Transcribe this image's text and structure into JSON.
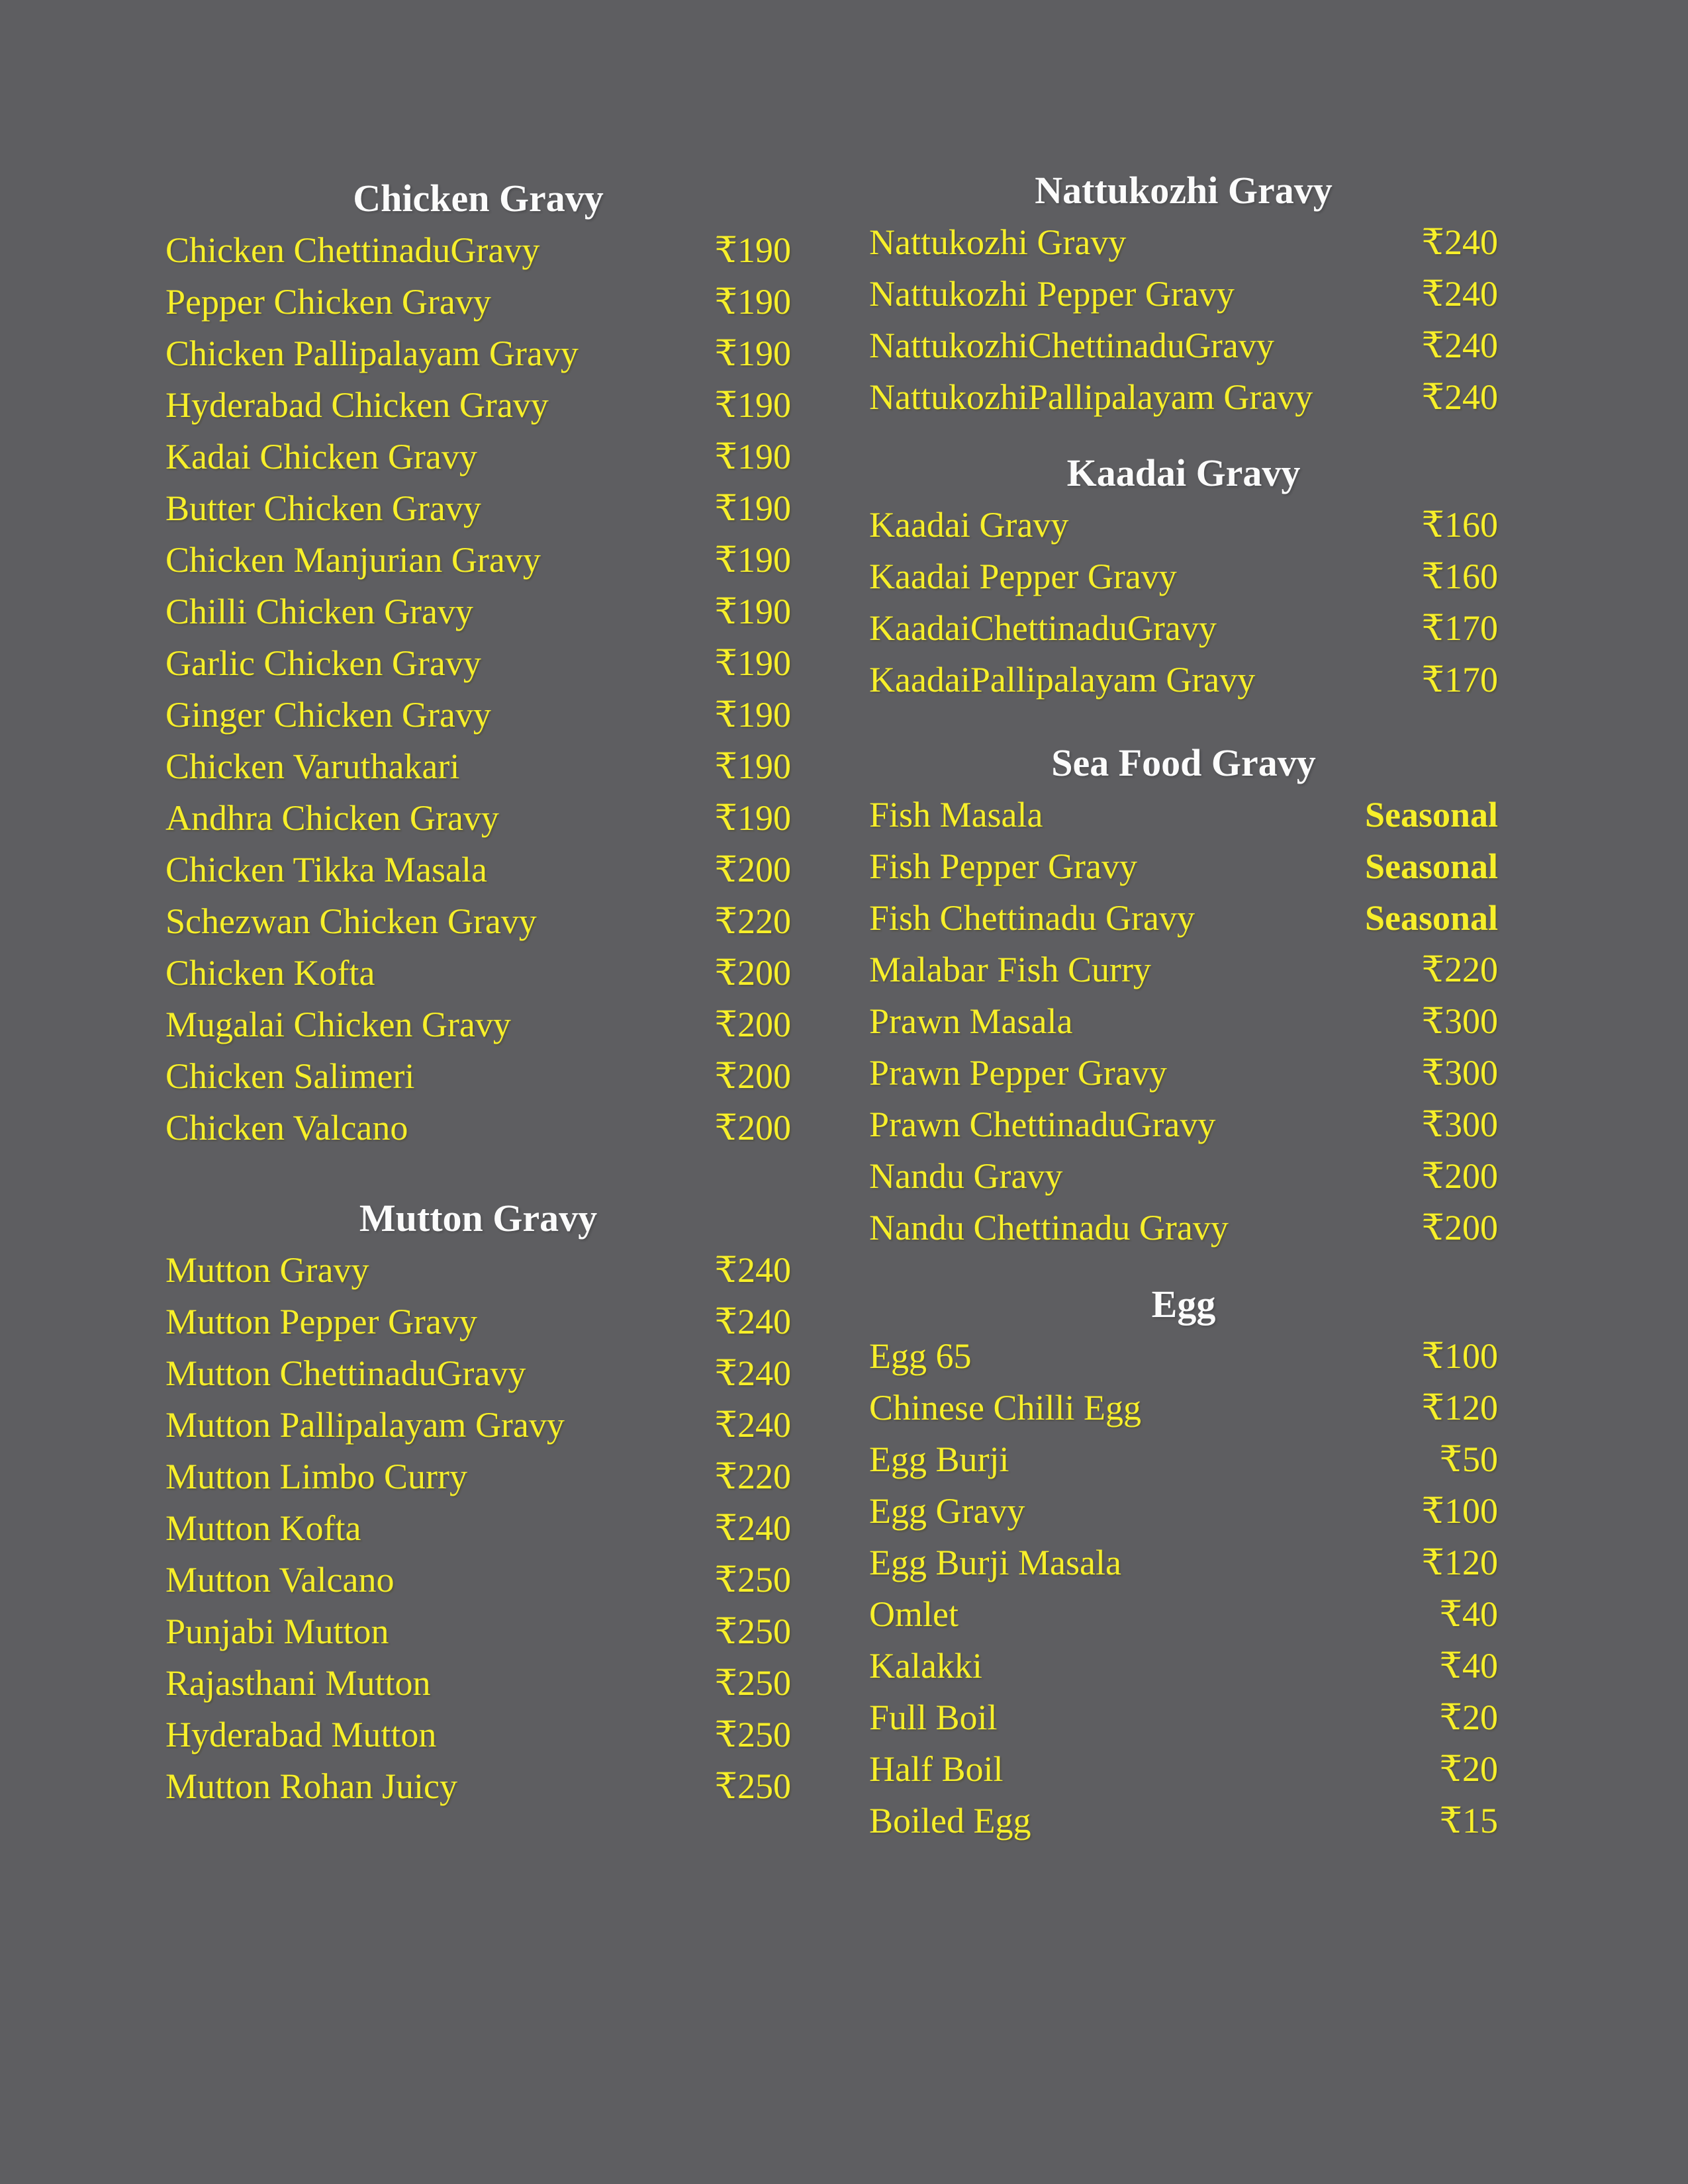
{
  "page": {
    "background_color": "#5e5e61",
    "item_text_color": "#f7ef2a",
    "header_text_color": "#fbfbfb",
    "currency_symbol": "₹"
  },
  "columns": [
    {
      "sections": [
        {
          "title": "Chicken Gravy",
          "items": [
            {
              "name": "Chicken ChettinaduGravy",
              "price": "₹190"
            },
            {
              "name": "Pepper Chicken Gravy",
              "price": "₹190"
            },
            {
              "name": "Chicken Pallipalayam Gravy",
              "price": "₹190"
            },
            {
              "name": "Hyderabad Chicken Gravy",
              "price": "₹190"
            },
            {
              "name": "Kadai Chicken Gravy",
              "price": "₹190"
            },
            {
              "name": "Butter Chicken Gravy",
              "price": "₹190"
            },
            {
              "name": "Chicken Manjurian Gravy",
              "price": "₹190"
            },
            {
              "name": "Chilli Chicken Gravy",
              "price": "₹190"
            },
            {
              "name": "Garlic Chicken Gravy",
              "price": "₹190"
            },
            {
              "name": "Ginger Chicken Gravy",
              "price": "₹190"
            },
            {
              "name": "Chicken Varuthakari",
              "price": "₹190"
            },
            {
              "name": "Andhra Chicken Gravy",
              "price": "₹190"
            },
            {
              "name": "Chicken Tikka Masala",
              "price": "₹200"
            },
            {
              "name": "Schezwan Chicken Gravy",
              "price": "₹220"
            },
            {
              "name": "Chicken Kofta",
              "price": "₹200"
            },
            {
              "name": "Mugalai Chicken Gravy",
              "price": "₹200"
            },
            {
              "name": "Chicken Salimeri",
              "price": "₹200"
            },
            {
              "name": "Chicken Valcano",
              "price": "₹200"
            }
          ]
        },
        {
          "title": "Mutton Gravy",
          "items": [
            {
              "name": "Mutton Gravy",
              "price": "₹240"
            },
            {
              "name": "Mutton Pepper Gravy",
              "price": "₹240"
            },
            {
              "name": "Mutton ChettinaduGravy",
              "price": "₹240"
            },
            {
              "name": "Mutton Pallipalayam Gravy",
              "price": "₹240"
            },
            {
              "name": "Mutton Limbo Curry",
              "price": "₹220"
            },
            {
              "name": "Mutton Kofta",
              "price": "₹240"
            },
            {
              "name": "Mutton Valcano",
              "price": "₹250"
            },
            {
              "name": "Punjabi Mutton",
              "price": "₹250"
            },
            {
              "name": "Rajasthani Mutton",
              "price": "₹250"
            },
            {
              "name": "Hyderabad Mutton",
              "price": "₹250"
            },
            {
              "name": "Mutton Rohan Juicy",
              "price": "₹250"
            }
          ]
        }
      ]
    },
    {
      "sections": [
        {
          "title": "Nattukozhi Gravy",
          "items": [
            {
              "name": "Nattukozhi Gravy",
              "price": "₹240"
            },
            {
              "name": "Nattukozhi Pepper Gravy",
              "price": "₹240"
            },
            {
              "name": "NattukozhiChettinaduGravy",
              "price": "₹240"
            },
            {
              "name": "NattukozhiPallipalayam Gravy",
              "price": "₹240"
            }
          ]
        },
        {
          "title": "Kaadai Gravy",
          "items": [
            {
              "name": "Kaadai Gravy",
              "price": "₹160"
            },
            {
              "name": "Kaadai Pepper Gravy",
              "price": "₹160"
            },
            {
              "name": "KaadaiChettinaduGravy",
              "price": "₹170"
            },
            {
              "name": "KaadaiPallipalayam Gravy",
              "price": "₹170"
            }
          ]
        },
        {
          "title": "Sea Food Gravy",
          "items": [
            {
              "name": "Fish Masala",
              "price": "Seasonal",
              "seasonal": true
            },
            {
              "name": "Fish Pepper Gravy",
              "price": "Seasonal",
              "seasonal": true
            },
            {
              "name": "Fish Chettinadu Gravy",
              "price": "Seasonal",
              "seasonal": true
            },
            {
              "name": "Malabar Fish Curry",
              "price": "₹220"
            },
            {
              "name": "Prawn Masala",
              "price": "₹300"
            },
            {
              "name": "Prawn Pepper Gravy",
              "price": "₹300"
            },
            {
              "name": "Prawn ChettinaduGravy",
              "price": "₹300"
            },
            {
              "name": "Nandu Gravy",
              "price": "₹200"
            },
            {
              "name": "Nandu Chettinadu Gravy",
              "price": "₹200"
            }
          ]
        },
        {
          "title": "Egg",
          "items": [
            {
              "name": "Egg 65",
              "price": "₹100"
            },
            {
              "name": "Chinese Chilli Egg",
              "price": "₹120"
            },
            {
              "name": "Egg Burji",
              "price": "₹50"
            },
            {
              "name": "Egg Gravy",
              "price": "₹100"
            },
            {
              "name": "Egg Burji Masala",
              "price": "₹120"
            },
            {
              "name": "Omlet",
              "price": "₹40"
            },
            {
              "name": "Kalakki",
              "price": "₹40"
            },
            {
              "name": "Full Boil",
              "price": "₹20"
            },
            {
              "name": "Half Boil",
              "price": "₹20"
            },
            {
              "name": "Boiled Egg",
              "price": "₹15"
            }
          ]
        }
      ]
    }
  ]
}
